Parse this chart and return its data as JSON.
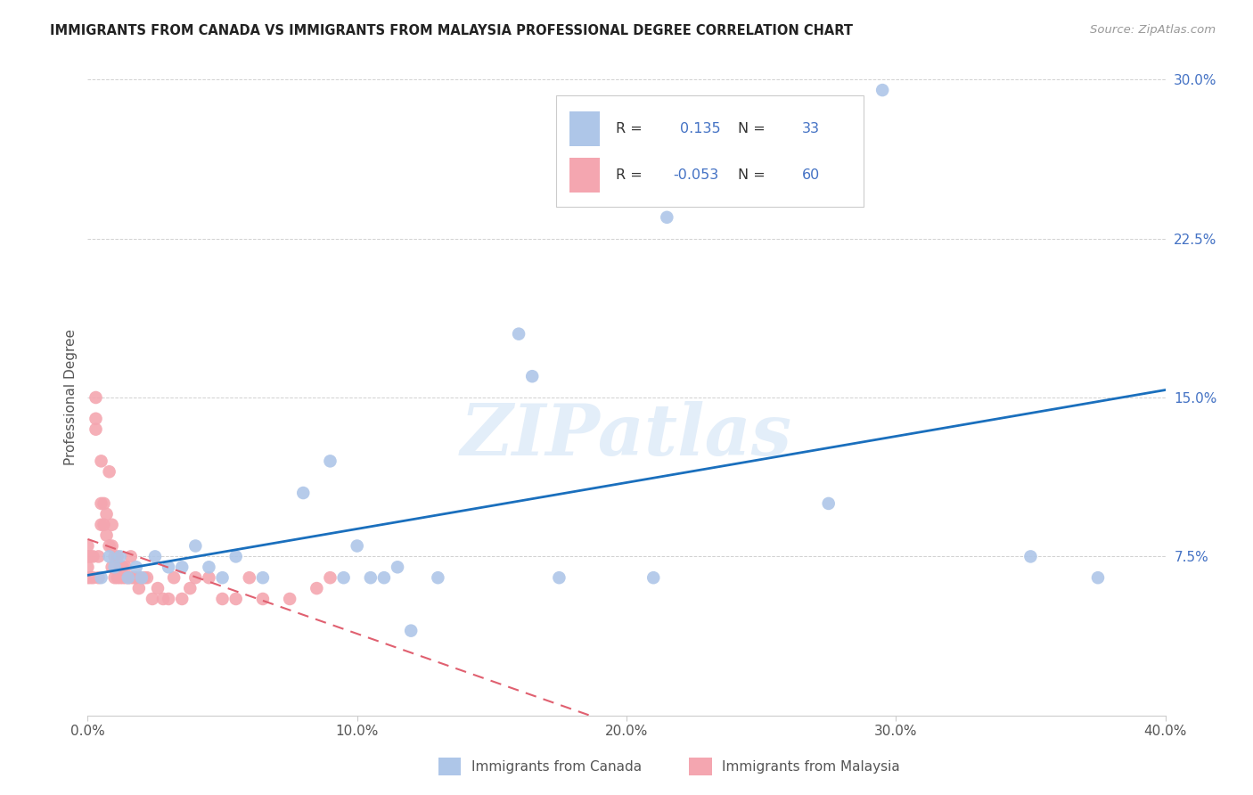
{
  "title": "IMMIGRANTS FROM CANADA VS IMMIGRANTS FROM MALAYSIA PROFESSIONAL DEGREE CORRELATION CHART",
  "source": "Source: ZipAtlas.com",
  "ylabel": "Professional Degree",
  "watermark": "ZIPatlas",
  "xlim": [
    0.0,
    0.4
  ],
  "ylim": [
    0.0,
    0.3
  ],
  "xticks": [
    0.0,
    0.1,
    0.2,
    0.3,
    0.4
  ],
  "yticks": [
    0.075,
    0.15,
    0.225,
    0.3
  ],
  "canada_R": 0.135,
  "canada_N": 33,
  "malaysia_R": -0.053,
  "malaysia_N": 60,
  "canada_color": "#aec6e8",
  "malaysia_color": "#f4a6b0",
  "canada_line_color": "#1a6fbd",
  "malaysia_line_color": "#e06070",
  "legend_label_canada": "Immigrants from Canada",
  "legend_label_malaysia": "Immigrants from Malaysia",
  "canada_points_x": [
    0.005,
    0.008,
    0.01,
    0.012,
    0.015,
    0.018,
    0.02,
    0.025,
    0.03,
    0.035,
    0.04,
    0.045,
    0.05,
    0.055,
    0.065,
    0.08,
    0.09,
    0.095,
    0.1,
    0.105,
    0.11,
    0.115,
    0.12,
    0.13,
    0.16,
    0.165,
    0.175,
    0.21,
    0.215,
    0.275,
    0.295,
    0.35,
    0.375
  ],
  "canada_points_y": [
    0.065,
    0.075,
    0.07,
    0.075,
    0.065,
    0.07,
    0.065,
    0.075,
    0.07,
    0.07,
    0.08,
    0.07,
    0.065,
    0.075,
    0.065,
    0.105,
    0.12,
    0.065,
    0.08,
    0.065,
    0.065,
    0.07,
    0.04,
    0.065,
    0.18,
    0.16,
    0.065,
    0.065,
    0.235,
    0.1,
    0.295,
    0.075,
    0.065
  ],
  "malaysia_points_x": [
    0.0,
    0.0,
    0.0,
    0.0,
    0.001,
    0.001,
    0.002,
    0.002,
    0.003,
    0.003,
    0.003,
    0.004,
    0.004,
    0.005,
    0.005,
    0.005,
    0.006,
    0.006,
    0.007,
    0.007,
    0.008,
    0.008,
    0.009,
    0.009,
    0.009,
    0.01,
    0.01,
    0.011,
    0.011,
    0.012,
    0.012,
    0.013,
    0.013,
    0.014,
    0.014,
    0.015,
    0.016,
    0.016,
    0.017,
    0.018,
    0.019,
    0.02,
    0.021,
    0.022,
    0.024,
    0.026,
    0.028,
    0.03,
    0.032,
    0.035,
    0.038,
    0.04,
    0.045,
    0.05,
    0.055,
    0.06,
    0.065,
    0.075,
    0.085,
    0.09
  ],
  "malaysia_points_y": [
    0.065,
    0.07,
    0.075,
    0.08,
    0.065,
    0.075,
    0.065,
    0.075,
    0.135,
    0.14,
    0.15,
    0.065,
    0.075,
    0.12,
    0.1,
    0.09,
    0.09,
    0.1,
    0.085,
    0.095,
    0.08,
    0.115,
    0.07,
    0.08,
    0.09,
    0.065,
    0.075,
    0.065,
    0.075,
    0.065,
    0.07,
    0.065,
    0.07,
    0.065,
    0.07,
    0.065,
    0.065,
    0.075,
    0.065,
    0.065,
    0.06,
    0.065,
    0.065,
    0.065,
    0.055,
    0.06,
    0.055,
    0.055,
    0.065,
    0.055,
    0.06,
    0.065,
    0.065,
    0.055,
    0.055,
    0.065,
    0.055,
    0.055,
    0.06,
    0.065
  ]
}
